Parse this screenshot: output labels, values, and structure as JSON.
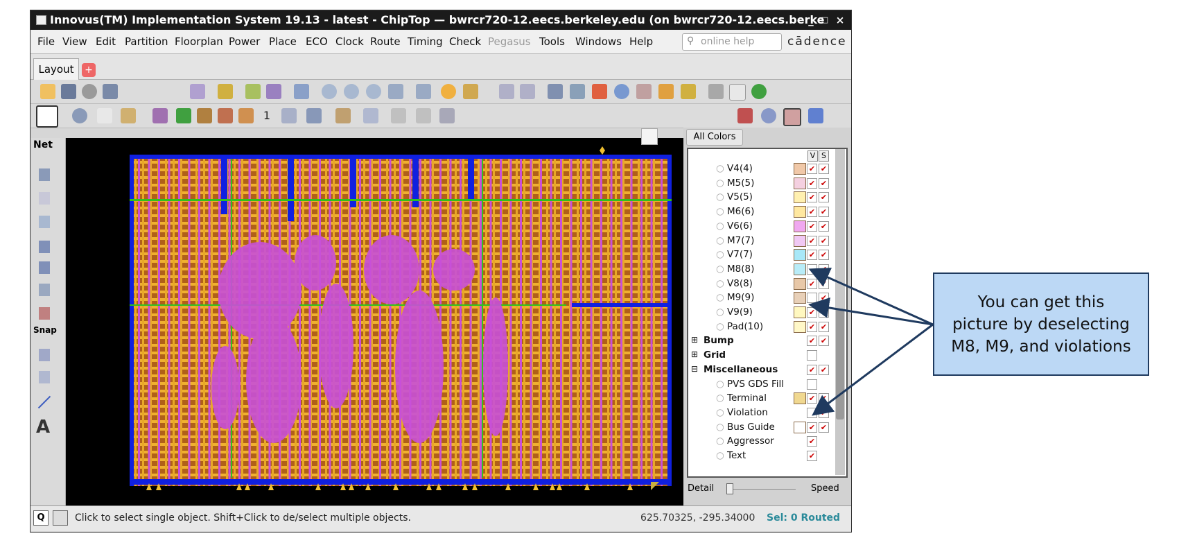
{
  "window": {
    "title": "Innovus(TM) Implementation System 19.13 - latest - ChipTop — bwrcr720-12.eecs.berkeley.edu (on bwrcr720-12.eecs.berke",
    "controls": [
      "_",
      "□",
      "×"
    ]
  },
  "menu": {
    "items": [
      {
        "label": "File"
      },
      {
        "label": "View"
      },
      {
        "label": "Edit"
      },
      {
        "label": "Partition"
      },
      {
        "label": "Floorplan"
      },
      {
        "label": "Power"
      },
      {
        "label": "Place"
      },
      {
        "label": "ECO"
      },
      {
        "label": "Clock"
      },
      {
        "label": "Route"
      },
      {
        "label": "Timing"
      },
      {
        "label": "Check"
      },
      {
        "label": "Pegasus"
      },
      {
        "label": "Tools"
      },
      {
        "label": "Windows"
      },
      {
        "label": "Help"
      }
    ],
    "search_placeholder": "online help",
    "brand": "cādence"
  },
  "tabs": {
    "layout": "Layout"
  },
  "left_toolbar": {
    "net_label": "Net",
    "snap_label": "Snap",
    "text_tool": "A"
  },
  "panel": {
    "all_colors": "All Colors",
    "col_v": "V",
    "col_s": "S",
    "layers": [
      {
        "label": "V4(4)",
        "color": "#f0c8a8",
        "v": true,
        "s": true
      },
      {
        "label": "M5(5)",
        "color": "#f4d0e0",
        "v": true,
        "s": true
      },
      {
        "label": "V5(5)",
        "color": "#fff0b0",
        "v": true,
        "s": true
      },
      {
        "label": "M6(6)",
        "color": "#ffe8a0",
        "v": true,
        "s": true
      },
      {
        "label": "V6(6)",
        "color": "#f0a8f0",
        "v": true,
        "s": true
      },
      {
        "label": "M7(7)",
        "color": "#f0c8f4",
        "v": true,
        "s": true
      },
      {
        "label": "V7(7)",
        "color": "#a8e8f8",
        "v": true,
        "s": true
      },
      {
        "label": "M8(8)",
        "color": "#b8ecf8",
        "v": false,
        "s": true
      },
      {
        "label": "V8(8)",
        "color": "#e8c8a8",
        "v": true,
        "s": true
      },
      {
        "label": "M9(9)",
        "color": "#e8d0b8",
        "v": false,
        "s": true
      },
      {
        "label": "V9(9)",
        "color": "#fff8c0",
        "v": true,
        "s": true
      },
      {
        "label": "Pad(10)",
        "color": "#fff8c8",
        "v": true,
        "s": true
      }
    ],
    "groups": [
      {
        "label": "Bump",
        "sign": "⊞"
      },
      {
        "label": "Grid",
        "sign": "⊞"
      },
      {
        "label": "Miscellaneous",
        "sign": "⊟"
      }
    ],
    "misc": [
      {
        "label": "PVS GDS Fill",
        "v": false,
        "s": false
      },
      {
        "label": "Terminal",
        "v": true,
        "s": true
      },
      {
        "label": "Violation",
        "v": false,
        "s": true
      },
      {
        "label": "Bus Guide",
        "v": true,
        "s": true
      },
      {
        "label": "Aggressor",
        "v": true,
        "s": false
      },
      {
        "label": "Text",
        "v": true,
        "s": false
      }
    ],
    "detail": "Detail",
    "speed": "Speed"
  },
  "status": {
    "hint": "Click to select single object. Shift+Click to de/select multiple objects.",
    "coords": "625.70325, -295.34000",
    "sel": "Sel: 0 Routed",
    "q": "Q"
  },
  "callout": {
    "text": "You can get this picture by deselecting M8, M9, and violations"
  },
  "colors": {
    "die_background": "#b06018",
    "metal_gold": "#f0b030",
    "metal_magenta": "#c850d8",
    "blue_stripe": "#1020e0",
    "green_stripe": "#30c020"
  }
}
